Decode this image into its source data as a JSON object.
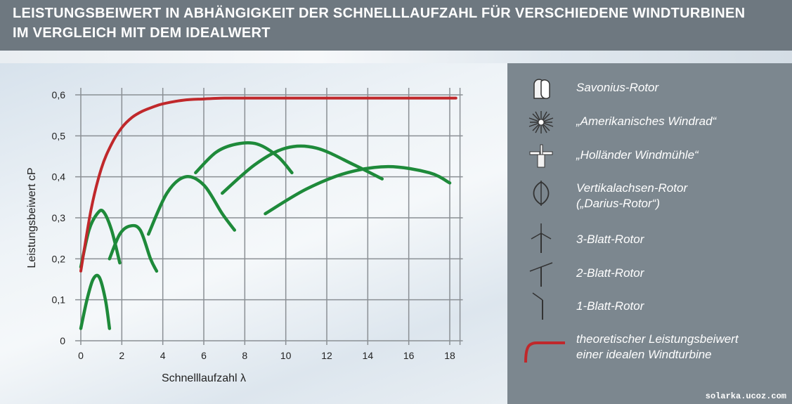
{
  "header": {
    "title_line1": "LEISTUNGSBEIWERT IN ABHÄNGIGKEIT DER SCHNELLLAUFZAHL FÜR VERSCHIEDENE WINDTURBINEN",
    "title_line2": "IM VERGLEICH MIT DEM IDEALWERT"
  },
  "colors": {
    "ideal_curve": "#c0282b",
    "turbine_curves": "#1e8a3a",
    "grid": "#8a8f94",
    "legend_bg": "#7c878f",
    "header_bg": "#6e7880"
  },
  "chart_data": {
    "type": "line",
    "title": "LEISTUNGSBEIWERT IN ABHÄNGIGKEIT DER SCHNELLLAUFZAHL FÜR VERSCHIEDENE WINDTURBINEN IM VERGLEICH MIT DEM IDEALWERT",
    "xlabel": "Schnelllaufzahl λ",
    "ylabel": "Leistungsbeiwert cP",
    "xlim": [
      0,
      18.5
    ],
    "ylim": [
      0,
      0.6
    ],
    "xticks": [
      0,
      2,
      4,
      6,
      8,
      10,
      12,
      14,
      16,
      18
    ],
    "yticks": [
      0,
      0.1,
      0.2,
      0.3,
      0.4,
      0.5,
      0.6
    ],
    "ytick_labels": [
      "0",
      "0,1",
      "0,2",
      "0,3",
      "0,4",
      "0,5",
      "0,6"
    ],
    "grid": true,
    "legend_placement": "right",
    "series": [
      {
        "name": "Savonius-Rotor",
        "color": "#1e8a3a",
        "icon": "savonius-rotor-icon",
        "x": [
          0,
          0.3,
          0.6,
          0.9,
          1.2,
          1.4
        ],
        "y": [
          0.03,
          0.1,
          0.15,
          0.155,
          0.1,
          0.03
        ]
      },
      {
        "name": "„Amerikanisches Windrad“",
        "color": "#1e8a3a",
        "icon": "american-windmill-icon",
        "x": [
          0,
          0.4,
          0.8,
          1.1,
          1.5,
          1.9
        ],
        "y": [
          0.18,
          0.27,
          0.31,
          0.315,
          0.27,
          0.19
        ]
      },
      {
        "name": "„Holländer Windmühle“",
        "color": "#1e8a3a",
        "icon": "dutch-windmill-icon",
        "x": [
          1.4,
          1.9,
          2.4,
          2.9,
          3.4,
          3.7
        ],
        "y": [
          0.2,
          0.26,
          0.28,
          0.27,
          0.2,
          0.17
        ]
      },
      {
        "name": "Vertikalachsen-Rotor („Darius-Rotor“)",
        "color": "#1e8a3a",
        "icon": "darrieus-rotor-icon",
        "x": [
          3.3,
          4.2,
          5.1,
          6.0,
          6.9,
          7.5
        ],
        "y": [
          0.26,
          0.36,
          0.4,
          0.38,
          0.31,
          0.27
        ]
      },
      {
        "name": "3-Blatt-Rotor",
        "color": "#1e8a3a",
        "icon": "three-blade-rotor-icon",
        "x": [
          5.6,
          6.6,
          7.6,
          8.6,
          9.6,
          10.3
        ],
        "y": [
          0.41,
          0.46,
          0.48,
          0.48,
          0.45,
          0.41
        ]
      },
      {
        "name": "2-Blatt-Rotor",
        "color": "#1e8a3a",
        "icon": "two-blade-rotor-icon",
        "x": [
          6.9,
          8.5,
          10.0,
          11.5,
          13.3,
          14.7
        ],
        "y": [
          0.36,
          0.43,
          0.47,
          0.47,
          0.43,
          0.395
        ]
      },
      {
        "name": "1-Blatt-Rotor",
        "color": "#1e8a3a",
        "icon": "one-blade-rotor-icon",
        "x": [
          9.0,
          11.0,
          13.0,
          15.0,
          17.0,
          18.0
        ],
        "y": [
          0.31,
          0.37,
          0.41,
          0.425,
          0.41,
          0.385
        ]
      },
      {
        "name": "theoretischer Leistungsbeiwert einer idealen Windturbine",
        "color": "#c0282b",
        "icon": "ideal-curve-icon",
        "x": [
          0,
          0.5,
          1,
          1.5,
          2,
          2.5,
          3,
          3.5,
          4,
          5,
          6,
          7,
          8,
          10,
          12,
          14,
          16,
          18.3
        ],
        "y": [
          0.17,
          0.32,
          0.42,
          0.48,
          0.52,
          0.545,
          0.56,
          0.57,
          0.578,
          0.587,
          0.59,
          0.592,
          0.592,
          0.592,
          0.592,
          0.592,
          0.592,
          0.592
        ]
      }
    ]
  },
  "legend": {
    "items": [
      {
        "label": "Savonius-Rotor",
        "label2": "",
        "icon": "savonius-rotor-icon"
      },
      {
        "label": "„Amerikanisches Windrad“",
        "label2": "",
        "icon": "american-windmill-icon"
      },
      {
        "label": "„Holländer Windmühle“",
        "label2": "",
        "icon": "dutch-windmill-icon"
      },
      {
        "label": "Vertikalachsen-Rotor",
        "label2": "(„Darius-Rotor“)",
        "icon": "darrieus-rotor-icon"
      },
      {
        "label": "3-Blatt-Rotor",
        "label2": "",
        "icon": "three-blade-rotor-icon"
      },
      {
        "label": "2-Blatt-Rotor",
        "label2": "",
        "icon": "two-blade-rotor-icon"
      },
      {
        "label": "1-Blatt-Rotor",
        "label2": "",
        "icon": "one-blade-rotor-icon"
      },
      {
        "label": "theoretischer Leistungsbeiwert",
        "label2": "einer idealen Windturbine",
        "icon": "ideal-curve-icon"
      }
    ]
  },
  "watermark": "solarka.ucoz.com"
}
